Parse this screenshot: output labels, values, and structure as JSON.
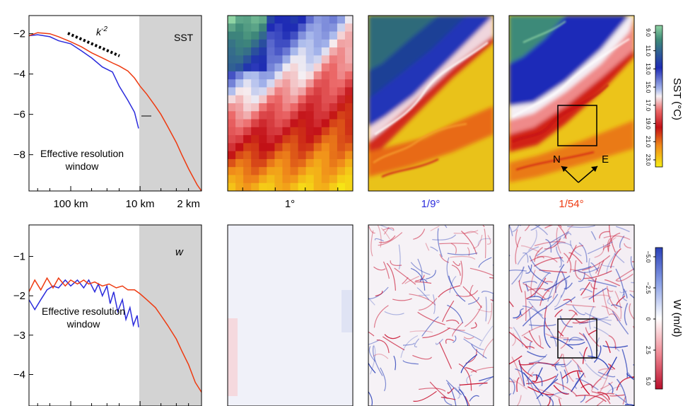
{
  "chart_data": [
    {
      "type": "line",
      "panel": "SST spectrum",
      "label": "SST",
      "annotation": "k",
      "annotation_sup": "-2",
      "shaded_text_1": "Effective resolution",
      "shaded_text_2": "window",
      "ytick_labels": [
        "−2",
        "−4",
        "−6",
        "−8"
      ],
      "yticks": [
        -2,
        -4,
        -6,
        -8
      ],
      "ylim": [
        -9.8,
        -1.1
      ],
      "xtick_labels": [
        "100 km",
        "10 km",
        "2 km"
      ],
      "xlim_km": [
        400,
        1.3
      ],
      "shaded_range_km": [
        10,
        1.3
      ],
      "series": [
        {
          "color": "#2b2bdc",
          "x": [
            400,
            300,
            200,
            150,
            100,
            70,
            50,
            35,
            25,
            20,
            15,
            12,
            10.5
          ],
          "y": [
            -2.1,
            -2.05,
            -2.15,
            -2.35,
            -2.5,
            -2.85,
            -3.2,
            -3.65,
            -3.9,
            -4.6,
            -5.3,
            -5.9,
            -6.7
          ]
        },
        {
          "color": "#ee3a10",
          "x": [
            400,
            300,
            200,
            150,
            100,
            70,
            50,
            35,
            25,
            20,
            15,
            12,
            10,
            8,
            6,
            5,
            4,
            3,
            2.5,
            2,
            1.5,
            1.3
          ],
          "y": [
            -2.1,
            -1.95,
            -2.0,
            -2.15,
            -2.4,
            -2.65,
            -2.95,
            -3.2,
            -3.45,
            -3.6,
            -3.85,
            -4.2,
            -4.6,
            -5.0,
            -5.6,
            -6.0,
            -6.6,
            -7.4,
            -8.0,
            -8.7,
            -9.5,
            -9.8
          ]
        }
      ]
    },
    {
      "type": "line",
      "panel": "W spectrum",
      "label": "w",
      "shaded_text_1": "Effective resolution",
      "shaded_text_2": "window",
      "ytick_labels": [
        "−1",
        "−2",
        "−3",
        "−4"
      ],
      "yticks": [
        -1,
        -2,
        -3,
        -4
      ],
      "ylim": [
        -4.8,
        -0.2
      ],
      "xlim_km": [
        400,
        1.3
      ],
      "shaded_range_km": [
        10,
        1.3
      ],
      "series": [
        {
          "color": "#2b2bdc",
          "x": [
            400,
            330,
            270,
            220,
            180,
            150,
            120,
            100,
            80,
            65,
            55,
            45,
            40,
            35,
            30,
            27,
            24,
            21,
            18,
            16,
            14,
            12.5,
            11,
            10.5
          ],
          "y": [
            -2.1,
            -2.35,
            -2.1,
            -1.85,
            -1.75,
            -1.8,
            -1.6,
            -1.75,
            -1.6,
            -1.8,
            -1.6,
            -1.9,
            -1.7,
            -2.0,
            -1.75,
            -2.2,
            -1.9,
            -2.4,
            -2.1,
            -2.6,
            -2.3,
            -2.75,
            -2.5,
            -2.8
          ]
        },
        {
          "color": "#ee3a10",
          "x": [
            400,
            330,
            270,
            220,
            180,
            150,
            120,
            100,
            80,
            65,
            55,
            45,
            35,
            28,
            22,
            18,
            15,
            12,
            10,
            8,
            6,
            5,
            4,
            3,
            2.5,
            2,
            1.6,
            1.3
          ],
          "y": [
            -1.9,
            -1.6,
            -1.85,
            -1.55,
            -1.8,
            -1.55,
            -1.75,
            -1.6,
            -1.7,
            -1.6,
            -1.7,
            -1.65,
            -1.75,
            -1.7,
            -1.8,
            -1.75,
            -1.85,
            -1.85,
            -1.95,
            -2.1,
            -2.3,
            -2.5,
            -2.75,
            -3.1,
            -3.4,
            -3.75,
            -4.2,
            -4.45
          ]
        }
      ]
    },
    {
      "type": "heatmap",
      "variable": "SST",
      "colorbar_label": "SST (°C)",
      "colorbar_ticks": [
        "9.0",
        "11.0",
        "13.0",
        "15.0",
        "17.0",
        "19.0",
        "21.0",
        "23.0"
      ],
      "colorbar_range": [
        9,
        23
      ],
      "panels": [
        {
          "label": "1°",
          "label_color": "#000000",
          "resolution": "coarse"
        },
        {
          "label": "1/9°",
          "label_color": "#2b2bdc",
          "resolution": "medium"
        },
        {
          "label": "1/54°",
          "label_color": "#ee3a10",
          "resolution": "fine"
        }
      ],
      "box_annotation": {
        "label_n": "N",
        "label_e": "E"
      }
    },
    {
      "type": "heatmap",
      "variable": "W",
      "colorbar_label": "W (m/d)",
      "colorbar_ticks": [
        "−5.0",
        "−2.5",
        "0",
        "2.5",
        "5.0"
      ],
      "colorbar_range": [
        -5,
        5
      ]
    }
  ],
  "colors": {
    "coarse_line": "#2b2bdc",
    "fine_line": "#ee3a10",
    "shade": "#d3d3d3"
  }
}
